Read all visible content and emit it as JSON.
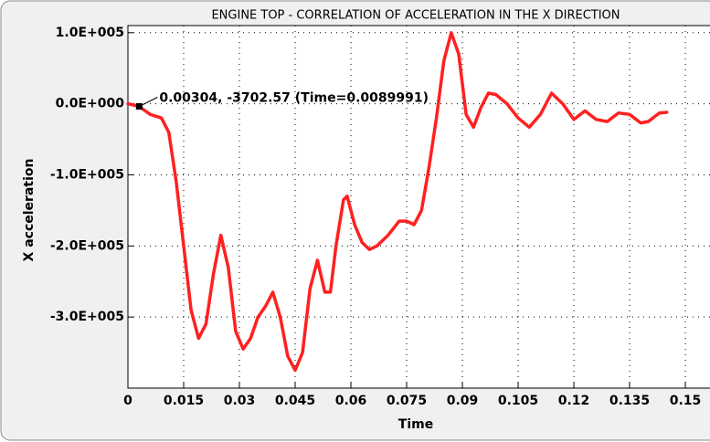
{
  "chart_data": {
    "type": "line",
    "title": "ENGINE TOP - CORRELATION OF ACCELERATION IN THE X DIRECTION",
    "x_label": "Time",
    "y_label": "X acceleration",
    "xlim": [
      0,
      0.157
    ],
    "ylim": [
      -400000,
      110000
    ],
    "xticks": [
      0,
      0.015,
      0.03,
      0.045,
      0.06,
      0.075,
      0.09,
      0.105,
      0.12,
      0.135,
      0.15
    ],
    "yticks": [
      {
        "value": 100000,
        "label": "1.0E+005"
      },
      {
        "value": 0,
        "label": "0.0E+000"
      },
      {
        "value": -100000,
        "label": "-1.0E+005"
      },
      {
        "value": -200000,
        "label": "-2.0E+005"
      },
      {
        "value": -300000,
        "label": "-3.0E+005"
      }
    ],
    "grid": true,
    "series": [
      {
        "color": "#ff2020",
        "x": [
          0,
          0.003,
          0.006,
          0.009,
          0.011,
          0.013,
          0.015,
          0.017,
          0.019,
          0.021,
          0.023,
          0.025,
          0.027,
          0.029,
          0.031,
          0.033,
          0.035,
          0.037,
          0.039,
          0.041,
          0.043,
          0.045,
          0.047,
          0.049,
          0.051,
          0.053,
          0.0545,
          0.056,
          0.058,
          0.059,
          0.061,
          0.063,
          0.065,
          0.067,
          0.07,
          0.073,
          0.075,
          0.077,
          0.079,
          0.081,
          0.083,
          0.085,
          0.087,
          0.089,
          0.091,
          0.093,
          0.095,
          0.097,
          0.099,
          0.102,
          0.105,
          0.108,
          0.111,
          0.114,
          0.117,
          0.12,
          0.123,
          0.126,
          0.129,
          0.132,
          0.135,
          0.138,
          0.14,
          0.143,
          0.145
        ],
        "values": [
          0,
          -3700,
          -15000,
          -20000,
          -40000,
          -110000,
          -200000,
          -290000,
          -330000,
          -310000,
          -240000,
          -185000,
          -230000,
          -320000,
          -345000,
          -330000,
          -300000,
          -285000,
          -265000,
          -300000,
          -355000,
          -375000,
          -350000,
          -260000,
          -220000,
          -265000,
          -265000,
          -200000,
          -135000,
          -130000,
          -170000,
          -195000,
          -205000,
          -200000,
          -185000,
          -165000,
          -165000,
          -170000,
          -150000,
          -90000,
          -20000,
          60000,
          100000,
          70000,
          -15000,
          -33000,
          -5000,
          15000,
          13000,
          0,
          -20000,
          -33000,
          -15000,
          15000,
          0,
          -22000,
          -10000,
          -22000,
          -25000,
          -13000,
          -15000,
          -27000,
          -25000,
          -13000,
          -12000
        ]
      }
    ],
    "annotation": {
      "text": "0.00304, -3702.57 (Time=0.0089991)",
      "x": 0.00304,
      "y": -3702.57
    }
  }
}
